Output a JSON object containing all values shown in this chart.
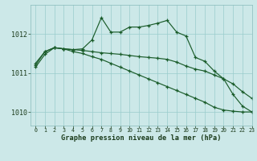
{
  "xlabel": "Graphe pression niveau de la mer (hPa)",
  "bg_color": "#cce8e8",
  "grid_color": "#99cccc",
  "line_color": "#1a5c2a",
  "xlim": [
    -0.5,
    23
  ],
  "ylim": [
    1009.65,
    1012.75
  ],
  "yticks": [
    1010,
    1011,
    1012
  ],
  "xticks": [
    0,
    1,
    2,
    3,
    4,
    5,
    6,
    7,
    8,
    9,
    10,
    11,
    12,
    13,
    14,
    15,
    16,
    17,
    18,
    19,
    20,
    21,
    22,
    23
  ],
  "series1": [
    1011.25,
    1011.55,
    1011.65,
    1011.62,
    1011.6,
    1011.62,
    1011.85,
    1012.42,
    1012.05,
    1012.05,
    1012.18,
    1012.18,
    1012.22,
    1012.28,
    1012.35,
    1012.05,
    1011.95,
    1011.4,
    1011.3,
    1011.05,
    1010.85,
    1010.45,
    1010.15,
    1010.0
  ],
  "series2": [
    1011.2,
    1011.55,
    1011.65,
    1011.62,
    1011.6,
    1011.58,
    1011.55,
    1011.52,
    1011.5,
    1011.48,
    1011.45,
    1011.42,
    1011.4,
    1011.38,
    1011.35,
    1011.28,
    1011.18,
    1011.1,
    1011.05,
    1010.95,
    1010.85,
    1010.72,
    1010.52,
    1010.35
  ],
  "series3": [
    1011.15,
    1011.48,
    1011.65,
    1011.62,
    1011.55,
    1011.5,
    1011.42,
    1011.35,
    1011.25,
    1011.15,
    1011.05,
    1010.95,
    1010.85,
    1010.75,
    1010.65,
    1010.55,
    1010.45,
    1010.35,
    1010.25,
    1010.12,
    1010.05,
    1010.02,
    1010.0,
    1010.0
  ]
}
